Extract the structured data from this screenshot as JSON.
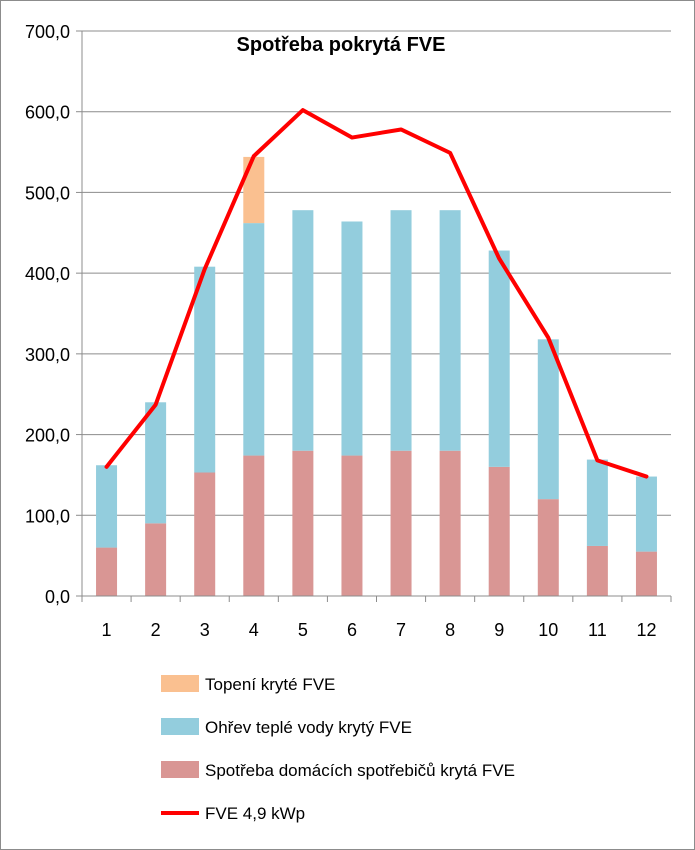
{
  "chart_data": {
    "type": "bar",
    "stacked": true,
    "title": "Spotřeba pokrytá FVE",
    "xlabel": "",
    "ylabel": "",
    "ylim": [
      0,
      700
    ],
    "yticks": [
      0,
      100,
      200,
      300,
      400,
      500,
      600,
      700
    ],
    "ytick_labels": [
      "0,0",
      "100,0",
      "200,0",
      "300,0",
      "400,0",
      "500,0",
      "600,0",
      "700,0"
    ],
    "grid": true,
    "legend_position": "bottom",
    "categories": [
      "1",
      "2",
      "3",
      "4",
      "5",
      "6",
      "7",
      "8",
      "9",
      "10",
      "11",
      "12"
    ],
    "series": [
      {
        "name": "Spotřeba domácích spotřebičů krytá FVE",
        "kind": "bar",
        "color": "#d99694",
        "values": [
          60,
          90,
          153,
          174,
          180,
          174,
          180,
          180,
          160,
          120,
          62,
          55
        ]
      },
      {
        "name": "Ohřev teplé vody krytý FVE",
        "kind": "bar",
        "color": "#93cddd",
        "values": [
          102,
          150,
          255,
          288,
          298,
          290,
          298,
          298,
          268,
          198,
          107,
          93
        ]
      },
      {
        "name": "Topení kryté FVE",
        "kind": "bar",
        "color": "#fac090",
        "values": [
          0,
          0,
          0,
          82,
          0,
          0,
          0,
          0,
          0,
          0,
          0,
          0
        ]
      },
      {
        "name": "FVE 4,9 kWp",
        "kind": "line",
        "color": "#ff0000",
        "values": [
          160,
          237,
          405,
          545,
          602,
          568,
          578,
          549,
          418,
          320,
          168,
          148
        ]
      }
    ],
    "legend_order": [
      "Topení kryté FVE",
      "Ohřev teplé vody krytý FVE",
      "Spotřeba domácích spotřebičů krytá FVE",
      "FVE 4,9 kWp"
    ]
  }
}
